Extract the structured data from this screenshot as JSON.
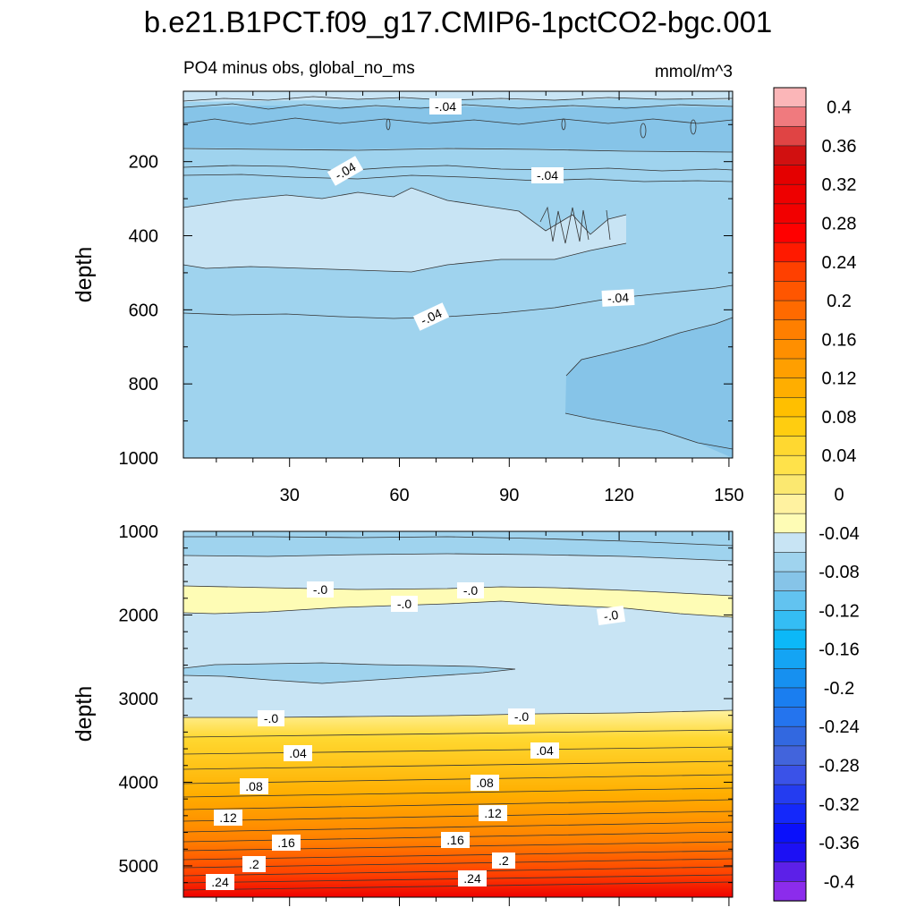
{
  "chart_data": [
    {
      "type": "contour",
      "panel": "upper",
      "title": "b.e21.B1PCT.f09_g17.CMIP6-1pctCO2-bgc.001",
      "left_subtitle": "PO4 minus obs, global_no_ms",
      "right_subtitle": "mmol/m^3",
      "ylabel": "depth",
      "xlabel": "",
      "xlim": [
        1,
        151
      ],
      "ylim": [
        1000,
        10
      ],
      "x_ticks": [
        30,
        60,
        90,
        120,
        150
      ],
      "y_ticks": [
        200,
        400,
        600,
        800,
        1000
      ],
      "fill_levels_description": "anomaly between -0.08 and 0 throughout",
      "contour_labels": [
        {
          "text": "-.04",
          "x": 71,
          "y": 45
        },
        {
          "text": "-.04",
          "x": 45,
          "y": 225
        },
        {
          "text": "-.04",
          "x": 100,
          "y": 235
        },
        {
          "text": "-.04",
          "x": 119,
          "y": 575
        },
        {
          "text": "-.04",
          "x": 67,
          "y": 620
        }
      ]
    },
    {
      "type": "contour",
      "panel": "lower",
      "ylabel": "depth",
      "xlim": [
        1,
        151
      ],
      "ylim": [
        5375,
        1000
      ],
      "y_ticks": [
        1000,
        2000,
        3000,
        4000,
        5000
      ],
      "fill_levels_description": "near-zero negative above 3200 m, increasing positive anomaly with depth to about 0.26 at bottom",
      "contour_labels": [
        {
          "text": "-.0",
          "x": 38,
          "y": 1690
        },
        {
          "text": "-.0",
          "x": 61,
          "y": 1880
        },
        {
          "text": "-.0",
          "x": 80,
          "y": 1700
        },
        {
          "text": "-.0",
          "x": 118,
          "y": 2000
        },
        {
          "text": "-.0",
          "x": 25,
          "y": 3230
        },
        {
          "text": "-.0",
          "x": 94,
          "y": 3210
        },
        {
          "text": ".04",
          "x": 32,
          "y": 3650
        },
        {
          "text": ".04",
          "x": 99,
          "y": 3620
        },
        {
          "text": ".08",
          "x": 21,
          "y": 4050
        },
        {
          "text": ".08",
          "x": 84,
          "y": 4010
        },
        {
          "text": ".12",
          "x": 13,
          "y": 4430
        },
        {
          "text": ".12",
          "x": 87,
          "y": 4380
        },
        {
          "text": ".16",
          "x": 29,
          "y": 4730
        },
        {
          "text": ".16",
          "x": 77,
          "y": 4720
        },
        {
          "text": ".2",
          "x": 20,
          "y": 5000
        },
        {
          "text": ".2",
          "x": 90,
          "y": 4960
        },
        {
          "text": ".24",
          "x": 11,
          "y": 5180
        },
        {
          "text": ".24",
          "x": 79,
          "y": 5140
        }
      ]
    },
    {
      "type": "colorbar",
      "labels": [
        "0.4",
        "0.36",
        "0.32",
        "0.28",
        "0.24",
        "0.2",
        "0.16",
        "0.12",
        "0.08",
        "0.04",
        "0",
        "-0.04",
        "-0.08",
        "-0.12",
        "-0.16",
        "-0.2",
        "-0.24",
        "-0.28",
        "-0.32",
        "-0.36",
        "-0.4"
      ],
      "colors": [
        "#fbb6b8",
        "#f07a7e",
        "#e04444",
        "#d11010",
        "#e40000",
        "#ee0000",
        "#f20000",
        "#ff0000",
        "#ff1a00",
        "#ff4000",
        "#ff5600",
        "#ff6a00",
        "#ff7f00",
        "#ff8f00",
        "#ff9f00",
        "#ffae00",
        "#ffbf00",
        "#ffcd10",
        "#ffd830",
        "#ffe24a",
        "#fbe870",
        "#fff2a0",
        "#fefcb5",
        "#c8e4f4",
        "#9fd3ee",
        "#86c4e8",
        "#62c3f0",
        "#34bdf4",
        "#0cb8f8",
        "#14a4f4",
        "#1690f0",
        "#1a7ef0",
        "#2474ee",
        "#3268e0",
        "#4264dc",
        "#3a52e8",
        "#243cf0",
        "#1428fa",
        "#0a10fb",
        "#1c10f4",
        "#5c20e8",
        "#8c2cec"
      ]
    }
  ]
}
